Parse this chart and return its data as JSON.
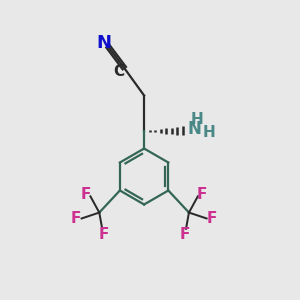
{
  "bg_color": "#e8e8e8",
  "bond_color": "#2a2a2a",
  "N_color": "#1010cc",
  "C_color": "#2a2a2a",
  "NH_color": "#4a8888",
  "F_color": "#cc3090",
  "ring_color": "#336655",
  "figsize": [
    3.0,
    3.0
  ],
  "dpi": 100,
  "xlim": [
    0,
    10
  ],
  "ylim": [
    0,
    10
  ]
}
